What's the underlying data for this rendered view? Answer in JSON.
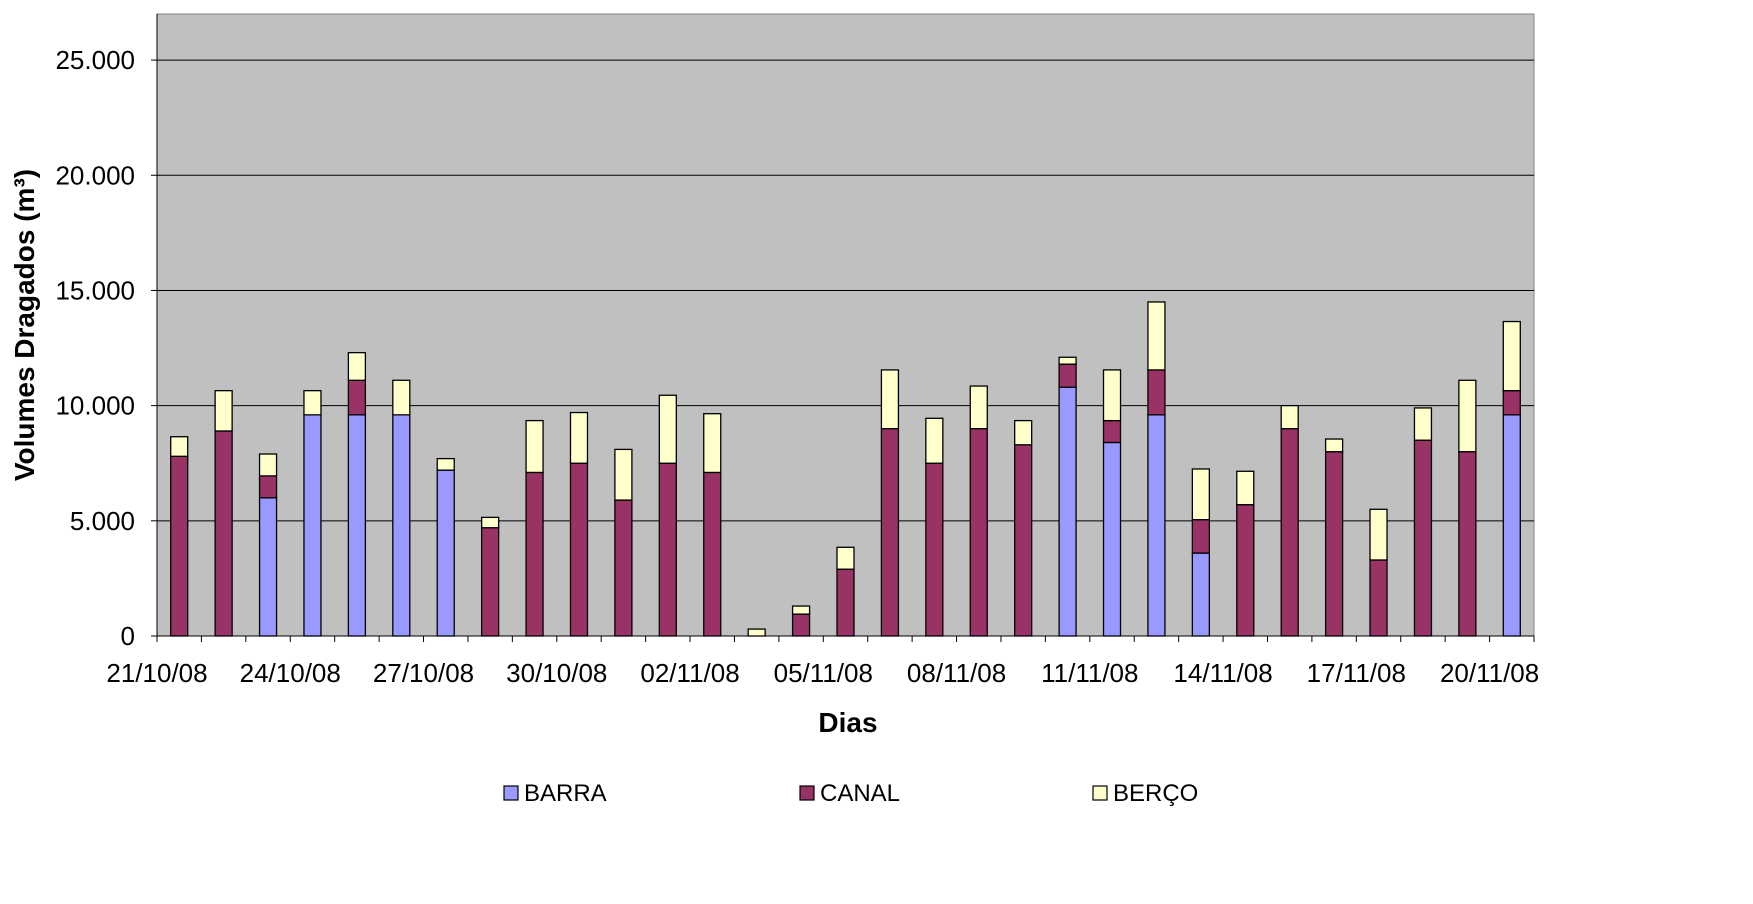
{
  "chart_data": {
    "type": "bar",
    "stacked": true,
    "title": "",
    "xlabel": "Dias",
    "ylabel": "Volumes Dragados (m³)",
    "ylim": [
      0,
      27000
    ],
    "yticks": [
      0,
      5000,
      10000,
      15000,
      20000,
      25000
    ],
    "ytick_labels": [
      "0",
      "5.000",
      "10.000",
      "15.000",
      "20.000",
      "25.000"
    ],
    "grid": true,
    "legend_position": "bottom",
    "categories": [
      "21/10/08",
      "22/10/08",
      "23/10/08",
      "24/10/08",
      "25/10/08",
      "26/10/08",
      "27/10/08",
      "28/10/08",
      "29/10/08",
      "30/10/08",
      "31/10/08",
      "01/11/08",
      "02/11/08",
      "03/11/08",
      "04/11/08",
      "05/11/08",
      "06/11/08",
      "07/11/08",
      "08/11/08",
      "09/11/08",
      "10/11/08",
      "11/11/08",
      "12/11/08",
      "13/11/08",
      "14/11/08",
      "15/11/08",
      "16/11/08",
      "17/11/08",
      "18/11/08",
      "19/11/08",
      "20/11/08"
    ],
    "xtick_labels": [
      "21/10/08",
      "24/10/08",
      "27/10/08",
      "30/10/08",
      "02/11/08",
      "05/11/08",
      "08/11/08",
      "11/11/08",
      "14/11/08",
      "17/11/08",
      "20/11/08"
    ],
    "series": [
      {
        "name": "BARRA",
        "color": "#9999FF",
        "values": [
          0,
          0,
          6000,
          9600,
          9600,
          9600,
          7200,
          0,
          0,
          0,
          0,
          0,
          0,
          0,
          0,
          0,
          0,
          0,
          0,
          0,
          10800,
          8400,
          9600,
          3600,
          0,
          0,
          0,
          0,
          0,
          0,
          9600
        ]
      },
      {
        "name": "CANAL",
        "color": "#993366",
        "values": [
          7800,
          8900,
          950,
          0,
          1500,
          0,
          0,
          4700,
          7100,
          7500,
          5900,
          7500,
          7100,
          0,
          950,
          2900,
          9000,
          7500,
          9000,
          8300,
          1000,
          950,
          1950,
          1450,
          5700,
          9000,
          8000,
          3300,
          8500,
          8000,
          1050
        ]
      },
      {
        "name": "BERÇO",
        "color": "#FFFFCC",
        "values": [
          850,
          1750,
          950,
          1050,
          1200,
          1500,
          500,
          450,
          2250,
          2200,
          2200,
          2950,
          2550,
          300,
          350,
          950,
          2550,
          1950,
          1850,
          1050,
          300,
          2200,
          2950,
          2200,
          1450,
          1000,
          550,
          2200,
          1400,
          3100,
          3000
        ]
      }
    ]
  }
}
